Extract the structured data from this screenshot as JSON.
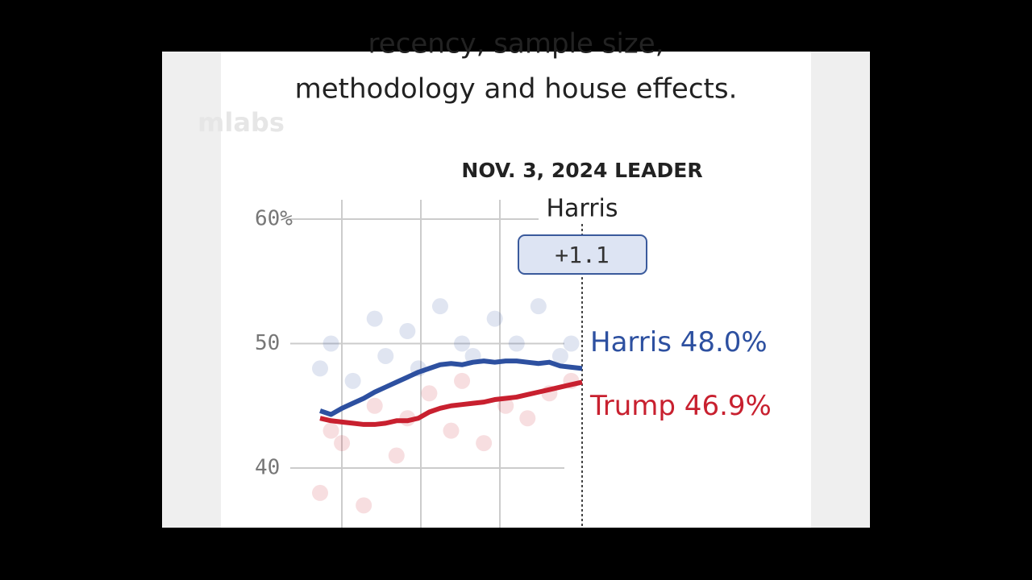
{
  "chart_data": {
    "type": "line",
    "subtitle_lines": [
      "recency, sample size,",
      "methodology and house effects."
    ],
    "watermark": "mlabs",
    "annotation_title": "NOV. 3, 2024 LEADER",
    "leader": "Harris",
    "margin_label": "+1.1",
    "x": [
      0,
      1,
      2,
      3,
      4,
      5,
      6,
      7,
      8,
      9,
      10,
      11,
      12,
      13,
      14,
      15,
      16,
      17,
      18,
      19,
      20,
      21,
      22,
      23,
      24
    ],
    "xlim": [
      0,
      24
    ],
    "ylim": [
      35.2,
      61.5
    ],
    "yticks": [
      40,
      50,
      {
        "value": 60,
        "label": "60%"
      }
    ],
    "grid": true,
    "series": [
      {
        "name": "Harris",
        "label": "Harris 48.0%",
        "color": "#2d50a0",
        "values": [
          44.6,
          44.3,
          44.8,
          45.2,
          45.6,
          46.1,
          46.5,
          46.9,
          47.3,
          47.7,
          48.0,
          48.3,
          48.4,
          48.3,
          48.5,
          48.6,
          48.5,
          48.6,
          48.6,
          48.5,
          48.4,
          48.5,
          48.2,
          48.1,
          48.0
        ],
        "polls_x": [
          0,
          1,
          3,
          5,
          6,
          8,
          9,
          11,
          13,
          14,
          16,
          18,
          20,
          22,
          23
        ],
        "polls": [
          48,
          50,
          47,
          52,
          49,
          51,
          48,
          53,
          50,
          49,
          52,
          50,
          53,
          49,
          50
        ]
      },
      {
        "name": "Trump",
        "label": "Trump 46.9%",
        "color": "#c8202f",
        "values": [
          44.0,
          43.8,
          43.7,
          43.6,
          43.5,
          43.5,
          43.6,
          43.8,
          43.8,
          44.0,
          44.5,
          44.8,
          45.0,
          45.1,
          45.2,
          45.3,
          45.5,
          45.6,
          45.7,
          45.9,
          46.1,
          46.3,
          46.5,
          46.7,
          46.9
        ],
        "polls_x": [
          0,
          1,
          2,
          4,
          5,
          7,
          8,
          10,
          12,
          13,
          15,
          17,
          19,
          21,
          23
        ],
        "polls": [
          38,
          43,
          42,
          37,
          45,
          41,
          44,
          46,
          43,
          47,
          42,
          45,
          44,
          46,
          47
        ]
      }
    ]
  }
}
